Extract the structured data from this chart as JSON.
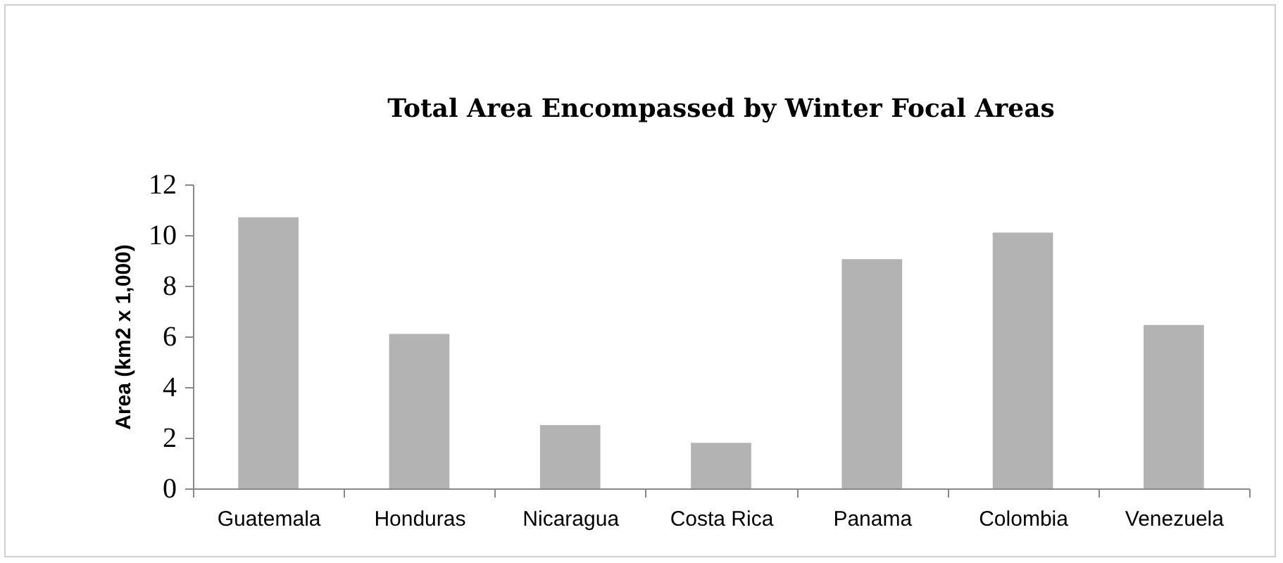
{
  "chart_data": {
    "type": "bar",
    "title": "Total Area Encompassed by Winter Focal Areas",
    "ylabel": "Area (km2 x 1,000)",
    "categories": [
      "Guatemala",
      "Honduras",
      "Nicaragua",
      "Costa Rica",
      "Panama",
      "Colombia",
      "Venezuela"
    ],
    "values": [
      10.7,
      6.1,
      2.5,
      1.8,
      9.05,
      10.1,
      6.45
    ],
    "color": "#b3b3b3",
    "ylim": [
      0,
      12
    ],
    "yticks": [
      0,
      2,
      4,
      6,
      8,
      10,
      12
    ],
    "grid": false
  }
}
